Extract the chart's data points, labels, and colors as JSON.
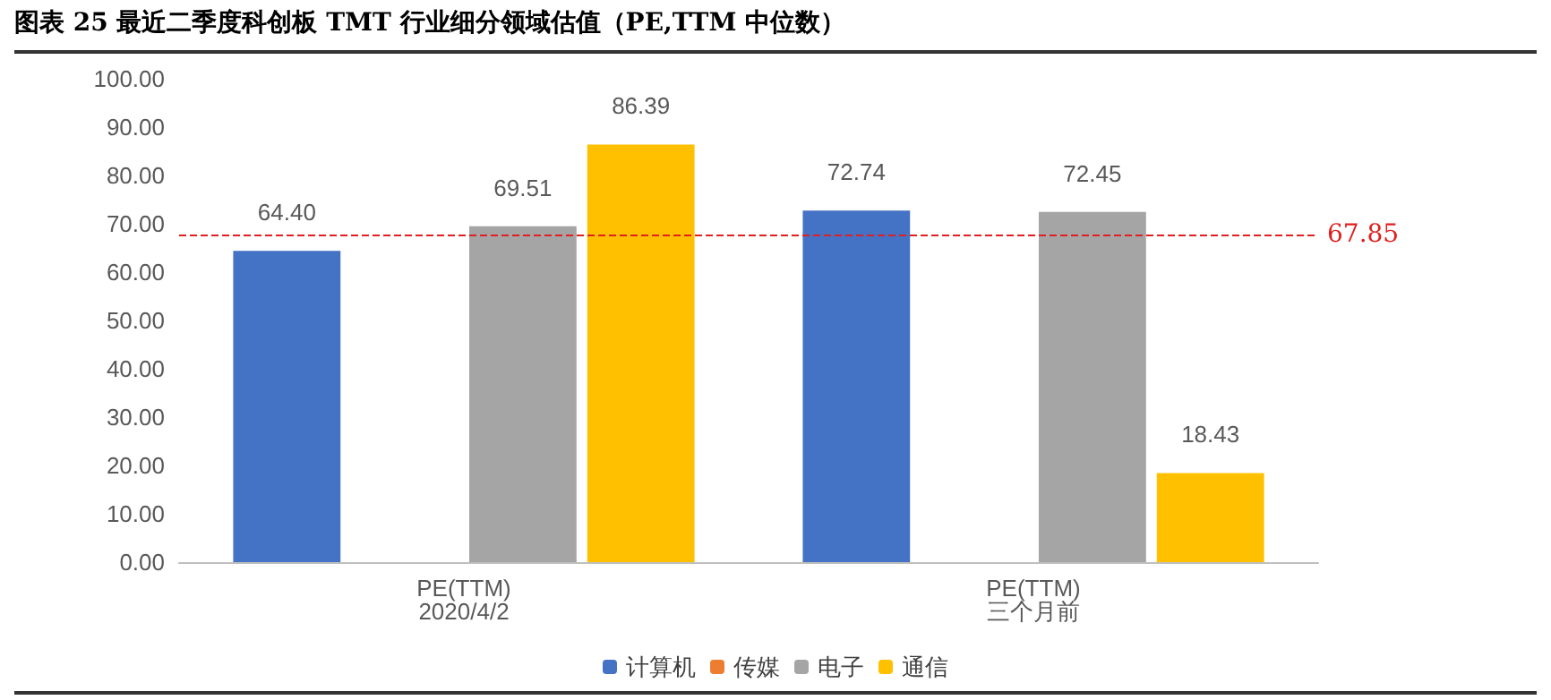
{
  "chart_data": {
    "type": "bar",
    "title": "图表 25 最近二季度科创板 TMT 行业细分领域估值（PE,TTM 中位数）",
    "categories": [
      "PE(TTM)\n2020/4/2",
      "PE(TTM)\n三个月前"
    ],
    "series": [
      {
        "name": "计算机",
        "color": "#4472c4",
        "values": [
          64.4,
          72.74
        ],
        "value_labels": [
          "64.40",
          "72.74"
        ]
      },
      {
        "name": "传媒",
        "color": "#ed7d31",
        "values": [
          null,
          null
        ]
      },
      {
        "name": "电子",
        "color": "#a5a5a5",
        "values": [
          69.51,
          72.45
        ],
        "value_labels": [
          "69.51",
          "72.45"
        ]
      },
      {
        "name": "通信",
        "color": "#ffc000",
        "values": [
          86.39,
          18.43
        ],
        "value_labels": [
          "86.39",
          "18.43"
        ]
      }
    ],
    "ylim": [
      0,
      100
    ],
    "yticks": [
      {
        "value": 0,
        "label": "0.00"
      },
      {
        "value": 10,
        "label": "10.00"
      },
      {
        "value": 20,
        "label": "20.00"
      },
      {
        "value": 30,
        "label": "30.00"
      },
      {
        "value": 40,
        "label": "40.00"
      },
      {
        "value": 50,
        "label": "50.00"
      },
      {
        "value": 60,
        "label": "60.00"
      },
      {
        "value": 70,
        "label": "70.00"
      },
      {
        "value": 80,
        "label": "80.00"
      },
      {
        "value": 90,
        "label": "90.00"
      },
      {
        "value": 100,
        "label": "100.00"
      }
    ],
    "ref_lines": [
      {
        "axis": "y",
        "value": 67.85,
        "label": "67.85",
        "color": "#e02020",
        "line_style": "dashed"
      }
    ],
    "grid": false,
    "legend": "bottom"
  }
}
